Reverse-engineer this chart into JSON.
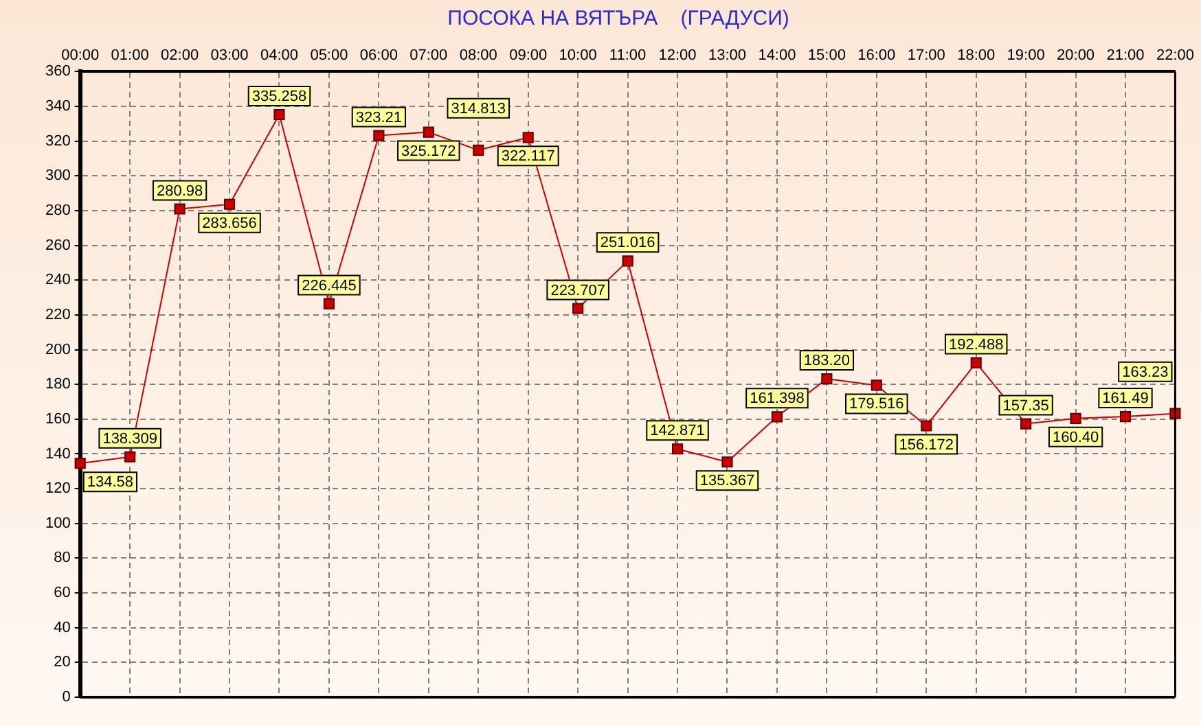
{
  "chart_data": {
    "type": "line",
    "title": "ПОСОКА НА ВЯТЪРА    (ГРАДУСИ)",
    "categories": [
      "00:00",
      "01:00",
      "02:00",
      "03:00",
      "04:00",
      "05:00",
      "06:00",
      "07:00",
      "08:00",
      "09:00",
      "10:00",
      "11:00",
      "12:00",
      "13:00",
      "14:00",
      "15:00",
      "16:00",
      "17:00",
      "18:00",
      "19:00",
      "20:00",
      "21:00",
      "22:00"
    ],
    "series": [
      {
        "color": "#cc0000",
        "values": [
          134.58,
          138.309,
          280.98,
          283.656,
          335.258,
          226.445,
          323.21,
          325.172,
          314.813,
          322.117,
          223.707,
          251.016,
          142.871,
          135.367,
          161.398,
          183.2,
          179.516,
          156.172,
          192.488,
          157.35,
          160.4,
          161.49,
          163.23
        ],
        "value_labels": [
          "134.58",
          "138.309",
          "280.98",
          "283.656",
          "335.258",
          "226.445",
          "323.21",
          "325.172",
          "314.813",
          "322.117",
          "223.707",
          "251.016",
          "142.871",
          "135.367",
          "161.398",
          "183.20",
          "179.516",
          "156.172",
          "192.488",
          "157.35",
          "160.40",
          "161.49",
          "163.23"
        ]
      }
    ],
    "ylim": [
      0,
      360
    ],
    "yticks": [
      0,
      20,
      40,
      60,
      80,
      100,
      120,
      140,
      160,
      180,
      200,
      220,
      240,
      260,
      280,
      300,
      320,
      340,
      360
    ],
    "grid": true,
    "legend": false,
    "marker": "square",
    "line_style": "solid"
  }
}
